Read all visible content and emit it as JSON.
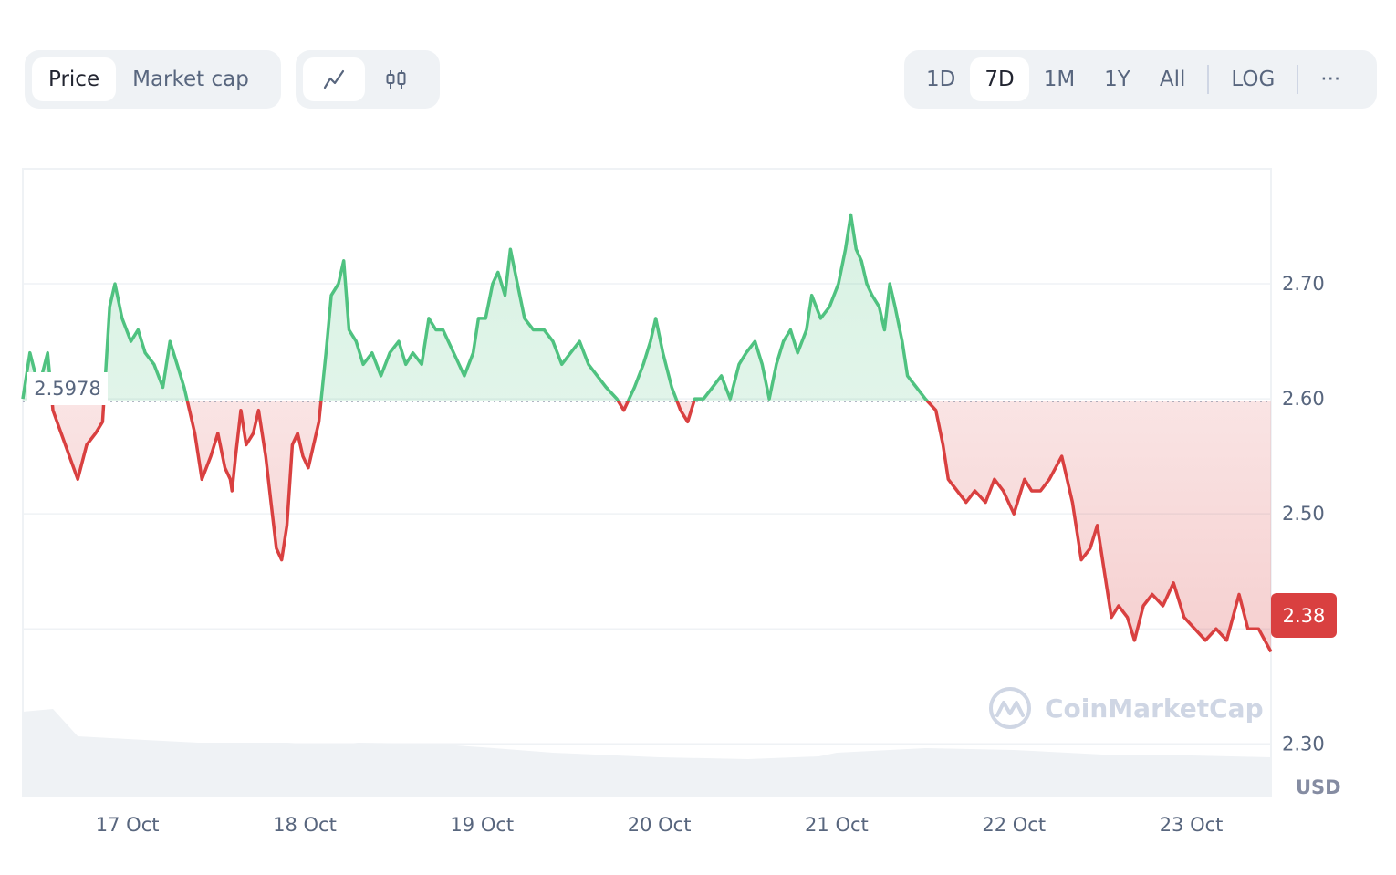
{
  "toolbar": {
    "type_tabs": [
      {
        "label": "Price",
        "active": true
      },
      {
        "label": "Market cap",
        "active": false
      }
    ],
    "style_tabs": [
      {
        "icon": "line-chart-icon",
        "active": true
      },
      {
        "icon": "candlestick-icon",
        "active": false
      }
    ],
    "range_tabs": [
      {
        "label": "1D",
        "active": false
      },
      {
        "label": "7D",
        "active": true
      },
      {
        "label": "1M",
        "active": false
      },
      {
        "label": "1Y",
        "active": false
      },
      {
        "label": "All",
        "active": false
      }
    ],
    "log_label": "LOG",
    "more_icon": "more-dots-icon",
    "more_label": "···"
  },
  "watermark": {
    "text": "CoinMarketCap",
    "icon": "coinmarketcap-logo-icon"
  },
  "currency_label": "USD",
  "colors": {
    "up": "#4fc280",
    "down": "#d94040",
    "grid": "#eff2f5",
    "volume": "#eff2f5"
  },
  "chart_data": {
    "type": "area",
    "baseline": 2.5978,
    "baseline_label": "2.5978",
    "current_price": 2.38,
    "current_label": "2.38",
    "ylim": [
      2.255,
      2.8
    ],
    "y_ticks": [
      2.3,
      2.4,
      2.5,
      2.6,
      2.7
    ],
    "y_tick_labels": [
      "2.30",
      "2.40",
      "2.50",
      "2.60",
      "2.70"
    ],
    "x_tick_labels": [
      "17 Oct",
      "18 Oct",
      "19 Oct",
      "20 Oct",
      "21 Oct",
      "22 Oct",
      "23 Oct"
    ],
    "xlim": [
      -0.59,
      6.45
    ],
    "price_points": [
      [
        -0.59,
        2.6
      ],
      [
        -0.55,
        2.64
      ],
      [
        -0.5,
        2.61
      ],
      [
        -0.45,
        2.64
      ],
      [
        -0.42,
        2.59
      ],
      [
        -0.35,
        2.56
      ],
      [
        -0.28,
        2.53
      ],
      [
        -0.23,
        2.56
      ],
      [
        -0.18,
        2.57
      ],
      [
        -0.14,
        2.58
      ],
      [
        -0.1,
        2.68
      ],
      [
        -0.07,
        2.7
      ],
      [
        -0.03,
        2.67
      ],
      [
        0.02,
        2.65
      ],
      [
        0.06,
        2.66
      ],
      [
        0.1,
        2.64
      ],
      [
        0.15,
        2.63
      ],
      [
        0.2,
        2.61
      ],
      [
        0.24,
        2.65
      ],
      [
        0.28,
        2.63
      ],
      [
        0.32,
        2.61
      ],
      [
        0.35,
        2.59
      ],
      [
        0.38,
        2.57
      ],
      [
        0.42,
        2.53
      ],
      [
        0.47,
        2.55
      ],
      [
        0.51,
        2.57
      ],
      [
        0.55,
        2.54
      ],
      [
        0.58,
        2.53
      ],
      [
        0.59,
        2.52
      ],
      [
        0.61,
        2.55
      ],
      [
        0.64,
        2.59
      ],
      [
        0.67,
        2.56
      ],
      [
        0.71,
        2.57
      ],
      [
        0.74,
        2.59
      ],
      [
        0.78,
        2.55
      ],
      [
        0.81,
        2.51
      ],
      [
        0.84,
        2.47
      ],
      [
        0.87,
        2.46
      ],
      [
        0.9,
        2.49
      ],
      [
        0.93,
        2.56
      ],
      [
        0.96,
        2.57
      ],
      [
        0.99,
        2.55
      ],
      [
        1.02,
        2.54
      ],
      [
        1.05,
        2.56
      ],
      [
        1.08,
        2.58
      ],
      [
        1.12,
        2.64
      ],
      [
        1.15,
        2.69
      ],
      [
        1.19,
        2.7
      ],
      [
        1.22,
        2.72
      ],
      [
        1.25,
        2.66
      ],
      [
        1.29,
        2.65
      ],
      [
        1.33,
        2.63
      ],
      [
        1.38,
        2.64
      ],
      [
        1.43,
        2.62
      ],
      [
        1.48,
        2.64
      ],
      [
        1.53,
        2.65
      ],
      [
        1.57,
        2.63
      ],
      [
        1.61,
        2.64
      ],
      [
        1.66,
        2.63
      ],
      [
        1.7,
        2.67
      ],
      [
        1.74,
        2.66
      ],
      [
        1.78,
        2.66
      ],
      [
        1.84,
        2.64
      ],
      [
        1.9,
        2.62
      ],
      [
        1.95,
        2.64
      ],
      [
        1.98,
        2.67
      ],
      [
        2.02,
        2.67
      ],
      [
        2.06,
        2.7
      ],
      [
        2.09,
        2.71
      ],
      [
        2.13,
        2.69
      ],
      [
        2.16,
        2.73
      ],
      [
        2.2,
        2.7
      ],
      [
        2.24,
        2.67
      ],
      [
        2.29,
        2.66
      ],
      [
        2.35,
        2.66
      ],
      [
        2.4,
        2.65
      ],
      [
        2.45,
        2.63
      ],
      [
        2.5,
        2.64
      ],
      [
        2.55,
        2.65
      ],
      [
        2.6,
        2.63
      ],
      [
        2.65,
        2.62
      ],
      [
        2.7,
        2.61
      ],
      [
        2.76,
        2.6
      ],
      [
        2.8,
        2.59
      ],
      [
        2.86,
        2.61
      ],
      [
        2.91,
        2.63
      ],
      [
        2.95,
        2.65
      ],
      [
        2.98,
        2.67
      ],
      [
        3.02,
        2.64
      ],
      [
        3.07,
        2.61
      ],
      [
        3.12,
        2.59
      ],
      [
        3.16,
        2.58
      ],
      [
        3.2,
        2.6
      ],
      [
        3.25,
        2.6
      ],
      [
        3.3,
        2.61
      ],
      [
        3.35,
        2.62
      ],
      [
        3.4,
        2.6
      ],
      [
        3.45,
        2.63
      ],
      [
        3.49,
        2.64
      ],
      [
        3.54,
        2.65
      ],
      [
        3.58,
        2.63
      ],
      [
        3.62,
        2.6
      ],
      [
        3.66,
        2.63
      ],
      [
        3.7,
        2.65
      ],
      [
        3.74,
        2.66
      ],
      [
        3.78,
        2.64
      ],
      [
        3.83,
        2.66
      ],
      [
        3.86,
        2.69
      ],
      [
        3.91,
        2.67
      ],
      [
        3.96,
        2.68
      ],
      [
        4.01,
        2.7
      ],
      [
        4.05,
        2.73
      ],
      [
        4.08,
        2.76
      ],
      [
        4.11,
        2.73
      ],
      [
        4.14,
        2.72
      ],
      [
        4.17,
        2.7
      ],
      [
        4.2,
        2.69
      ],
      [
        4.24,
        2.68
      ],
      [
        4.27,
        2.66
      ],
      [
        4.3,
        2.7
      ],
      [
        4.33,
        2.68
      ],
      [
        4.37,
        2.65
      ],
      [
        4.4,
        2.62
      ],
      [
        4.45,
        2.61
      ],
      [
        4.5,
        2.6
      ],
      [
        4.56,
        2.59
      ],
      [
        4.6,
        2.56
      ],
      [
        4.63,
        2.53
      ],
      [
        4.68,
        2.52
      ],
      [
        4.73,
        2.51
      ],
      [
        4.78,
        2.52
      ],
      [
        4.84,
        2.51
      ],
      [
        4.89,
        2.53
      ],
      [
        4.94,
        2.52
      ],
      [
        5.0,
        2.5
      ],
      [
        5.06,
        2.53
      ],
      [
        5.1,
        2.52
      ],
      [
        5.15,
        2.52
      ],
      [
        5.2,
        2.53
      ],
      [
        5.27,
        2.55
      ],
      [
        5.33,
        2.51
      ],
      [
        5.38,
        2.46
      ],
      [
        5.43,
        2.47
      ],
      [
        5.47,
        2.49
      ],
      [
        5.51,
        2.45
      ],
      [
        5.55,
        2.41
      ],
      [
        5.59,
        2.42
      ],
      [
        5.64,
        2.41
      ],
      [
        5.68,
        2.39
      ],
      [
        5.73,
        2.42
      ],
      [
        5.78,
        2.43
      ],
      [
        5.84,
        2.42
      ],
      [
        5.9,
        2.44
      ],
      [
        5.96,
        2.41
      ],
      [
        6.02,
        2.4
      ],
      [
        6.08,
        2.39
      ],
      [
        6.14,
        2.4
      ],
      [
        6.2,
        2.39
      ],
      [
        6.27,
        2.43
      ],
      [
        6.32,
        2.4
      ],
      [
        6.38,
        2.4
      ],
      [
        6.45,
        2.38
      ]
    ],
    "volume_points": [
      [
        -0.59,
        0.92
      ],
      [
        -0.42,
        0.95
      ],
      [
        -0.35,
        0.8
      ],
      [
        -0.28,
        0.65
      ],
      [
        0.0,
        0.62
      ],
      [
        0.4,
        0.58
      ],
      [
        0.9,
        0.58
      ],
      [
        1.0,
        0.57
      ],
      [
        1.2,
        0.56
      ],
      [
        1.3,
        0.58
      ],
      [
        1.7,
        0.57
      ],
      [
        2.0,
        0.53
      ],
      [
        2.4,
        0.47
      ],
      [
        3.0,
        0.42
      ],
      [
        3.5,
        0.4
      ],
      [
        3.9,
        0.43
      ],
      [
        4.0,
        0.47
      ],
      [
        4.5,
        0.52
      ],
      [
        5.0,
        0.5
      ],
      [
        5.5,
        0.45
      ],
      [
        6.0,
        0.44
      ],
      [
        6.45,
        0.42
      ]
    ]
  }
}
